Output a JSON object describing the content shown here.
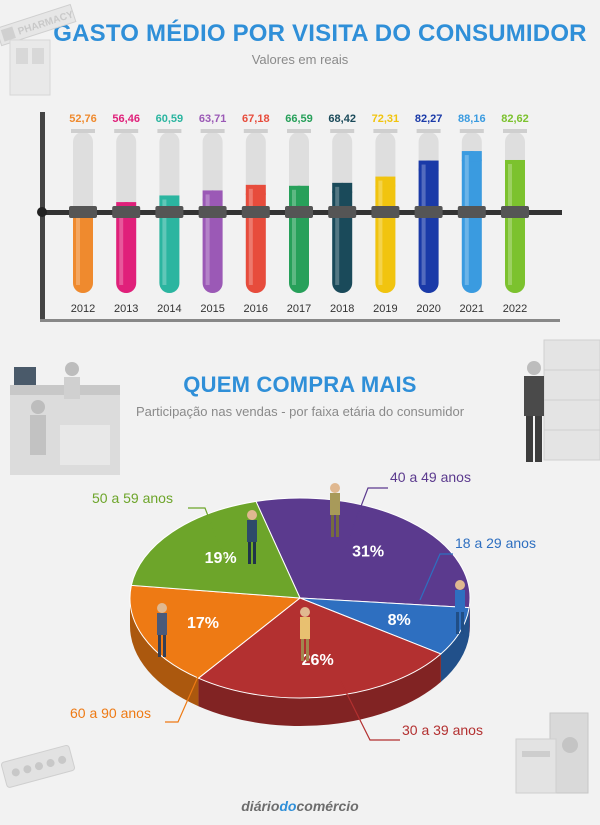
{
  "chart_data": [
    {
      "type": "bar",
      "title": "GASTO MÉDIO POR VISITA DO CONSUMIDOR",
      "subtitle": "Valores em reais",
      "categories": [
        "2012",
        "2013",
        "2014",
        "2015",
        "2016",
        "2017",
        "2018",
        "2019",
        "2020",
        "2021",
        "2022"
      ],
      "values": [
        52.76,
        56.46,
        60.59,
        63.71,
        67.18,
        66.59,
        68.42,
        72.31,
        82.27,
        88.16,
        82.62
      ],
      "value_labels": [
        "52,76",
        "56,46",
        "60,59",
        "63,71",
        "67,18",
        "66,59",
        "68,42",
        "72,31",
        "82,27",
        "88,16",
        "82,62"
      ],
      "colors": [
        "#ef8a2e",
        "#e0207a",
        "#2bb5a0",
        "#9b59b6",
        "#e74c3c",
        "#27a05a",
        "#1a4a5a",
        "#f1c40f",
        "#1a3aa8",
        "#3a9be0",
        "#7cc22e"
      ],
      "ylim": [
        0,
        100
      ]
    },
    {
      "type": "pie",
      "title": "QUEM COMPRA MAIS",
      "subtitle": "Participação nas vendas - por faixa etária do consumidor",
      "slices": [
        {
          "label": "40 a 49 anos",
          "value": 31,
          "text": "31%",
          "color": "#5b3a8e"
        },
        {
          "label": "18 a 29 anos",
          "value": 8,
          "text": "8%",
          "color": "#2e6fc0"
        },
        {
          "label": "30 a 39 anos",
          "value": 26,
          "text": "26%",
          "color": "#b33030"
        },
        {
          "label": "60 a 90 anos",
          "value": 17,
          "text": "17%",
          "color": "#ee7a14"
        },
        {
          "label": "50 a 59 anos",
          "value": 19,
          "text": "19%",
          "color": "#6da52a"
        }
      ],
      "label_colors": {
        "40 a 49 anos": "#5b3a8e",
        "18 a 29 anos": "#2e6fc0",
        "30 a 39 anos": "#b33030",
        "60 a 90 anos": "#ee7a14",
        "50 a 59 anos": "#6da52a"
      }
    }
  ],
  "footer": {
    "brand_a": "diário",
    "brand_b": "do",
    "brand_c": "comércio"
  },
  "decor": {
    "sign_text": "PHARMACY"
  }
}
